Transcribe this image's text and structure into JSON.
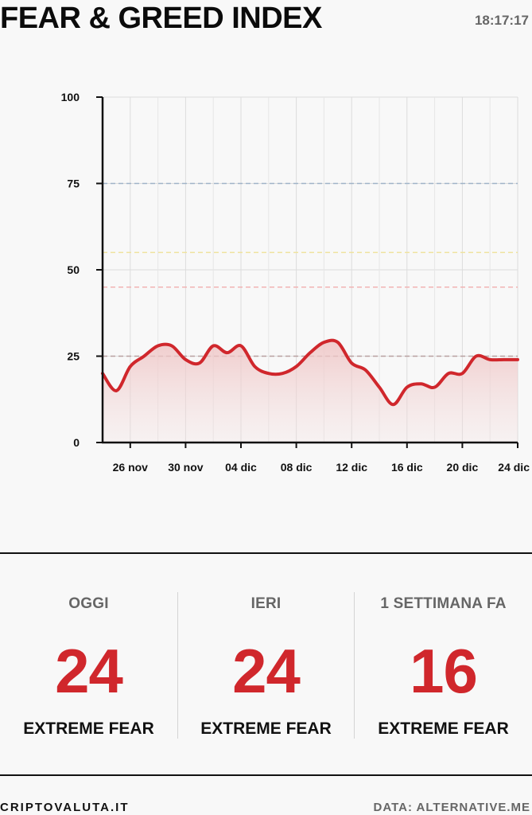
{
  "header": {
    "title": "FEAR & GREED INDEX",
    "time": "18:17:17"
  },
  "chart_data": {
    "type": "area",
    "x": [
      "24 nov",
      "25 nov",
      "26 nov",
      "27 nov",
      "28 nov",
      "29 nov",
      "30 nov",
      "01 dic",
      "02 dic",
      "03 dic",
      "04 dic",
      "05 dic",
      "06 dic",
      "07 dic",
      "08 dic",
      "09 dic",
      "10 dic",
      "11 dic",
      "12 dic",
      "13 dic",
      "14 dic",
      "15 dic",
      "16 dic",
      "17 dic",
      "18 dic",
      "19 dic",
      "20 dic",
      "21 dic",
      "22 dic",
      "23 dic",
      "24 dic"
    ],
    "series": [
      {
        "values": [
          20,
          15,
          22,
          25,
          28,
          28,
          24,
          23,
          28,
          26,
          28,
          22,
          20,
          20,
          22,
          26,
          29,
          29,
          23,
          21,
          16,
          11,
          16,
          17,
          16,
          20,
          20,
          25,
          24,
          24,
          24
        ]
      }
    ],
    "xticks": [
      "26 nov",
      "30 nov",
      "04 dic",
      "08 dic",
      "12 dic",
      "16 dic",
      "20 dic",
      "24 dic"
    ],
    "yticks": [
      0,
      25,
      50,
      75,
      100
    ],
    "ylim": [
      0,
      100
    ],
    "reference_lines": [
      {
        "value": 75,
        "color": "#9fb3c8"
      },
      {
        "value": 55,
        "color": "#efe3a0"
      },
      {
        "value": 45,
        "color": "#f1b3b3"
      },
      {
        "value": 25,
        "color": "#b8a0a0"
      }
    ],
    "line_color": "#d0272c",
    "fill_color": "#f3d6d6",
    "grid": true
  },
  "stats": [
    {
      "label": "OGGI",
      "value": "24",
      "classification": "EXTREME FEAR"
    },
    {
      "label": "IERI",
      "value": "24",
      "classification": "EXTREME FEAR"
    },
    {
      "label": "1 SETTIMANA FA",
      "value": "16",
      "classification": "EXTREME FEAR"
    }
  ],
  "footer": {
    "brand": "CRIPTOVALUTA.IT",
    "source": "DATA: ALTERNATIVE.ME"
  },
  "colors": {
    "accent": "#d0272c",
    "muted": "#666666"
  }
}
